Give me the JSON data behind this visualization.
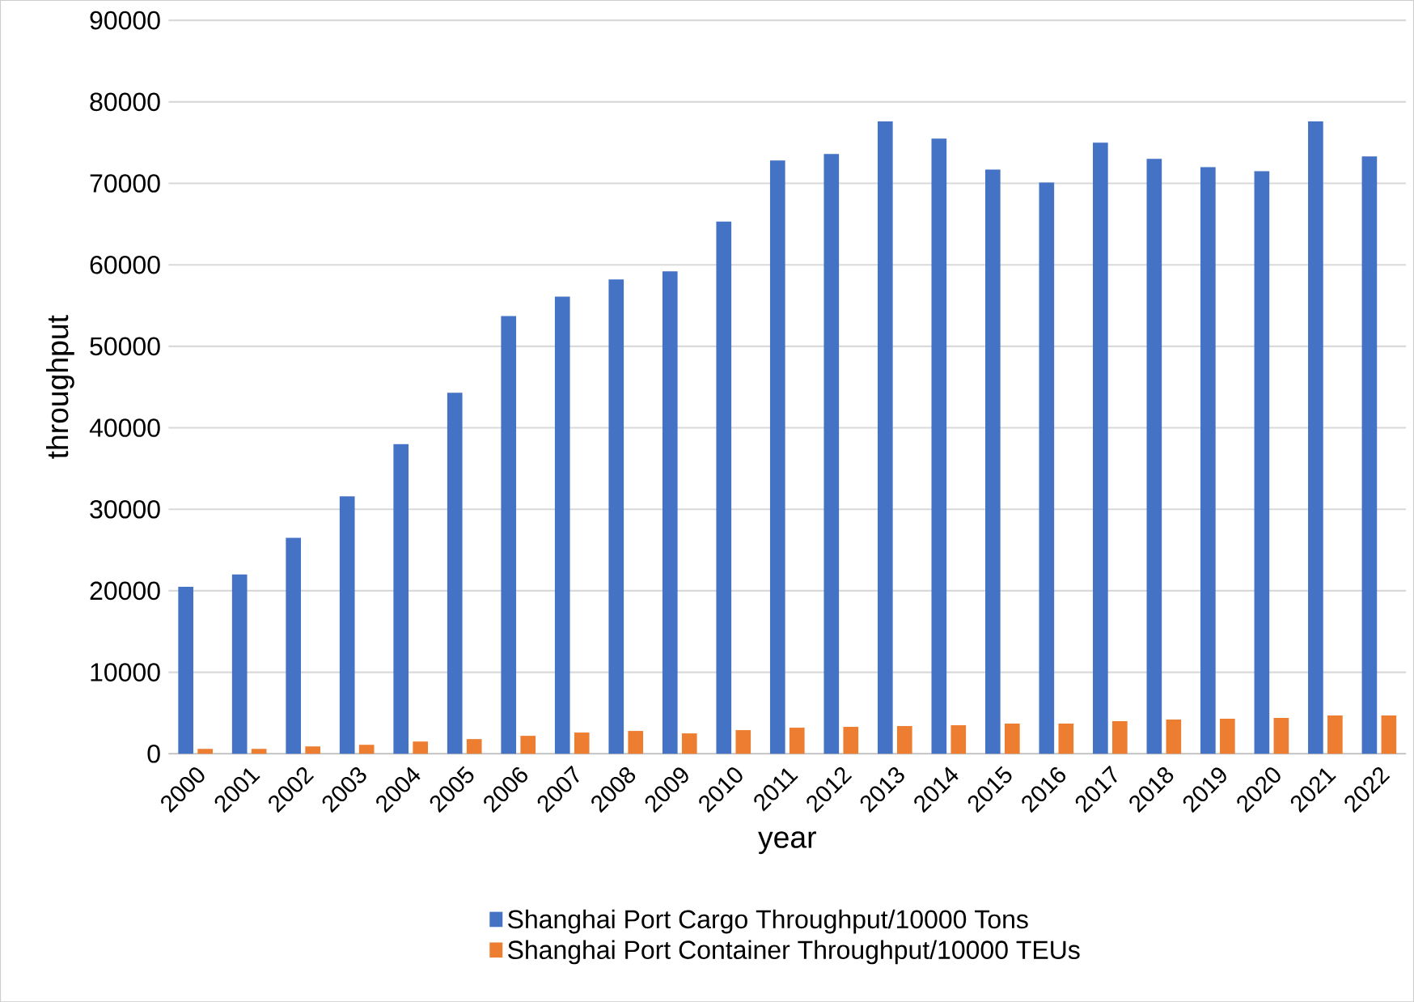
{
  "chart_data": {
    "type": "bar",
    "xlabel": "year",
    "ylabel": "throughput",
    "categories": [
      "2000",
      "2001",
      "2002",
      "2003",
      "2004",
      "2005",
      "2006",
      "2007",
      "2008",
      "2009",
      "2010",
      "2011",
      "2012",
      "2013",
      "2014",
      "2015",
      "2016",
      "2017",
      "2018",
      "2019",
      "2020",
      "2021",
      "2022"
    ],
    "series": [
      {
        "name": "Shanghai Port Cargo Throughput/10000 Tons",
        "color": "#4472c4",
        "values": [
          20500,
          22000,
          26500,
          31600,
          38000,
          44300,
          53700,
          56100,
          58200,
          59200,
          65300,
          72800,
          73600,
          77600,
          75500,
          71700,
          70100,
          75000,
          73000,
          72000,
          71500,
          77600,
          73300
        ]
      },
      {
        "name": "Shanghai Port Container Throughput/10000 TEUs",
        "color": "#ed7d31",
        "values": [
          600,
          600,
          900,
          1100,
          1500,
          1800,
          2200,
          2600,
          2800,
          2500,
          2900,
          3200,
          3300,
          3400,
          3500,
          3700,
          3700,
          4000,
          4200,
          4300,
          4400,
          4700,
          4700
        ]
      }
    ],
    "ylim": [
      0,
      90000
    ],
    "yticks": [
      0,
      10000,
      20000,
      30000,
      40000,
      50000,
      60000,
      70000,
      80000,
      90000
    ],
    "grid": "y",
    "legend": "bottom"
  }
}
